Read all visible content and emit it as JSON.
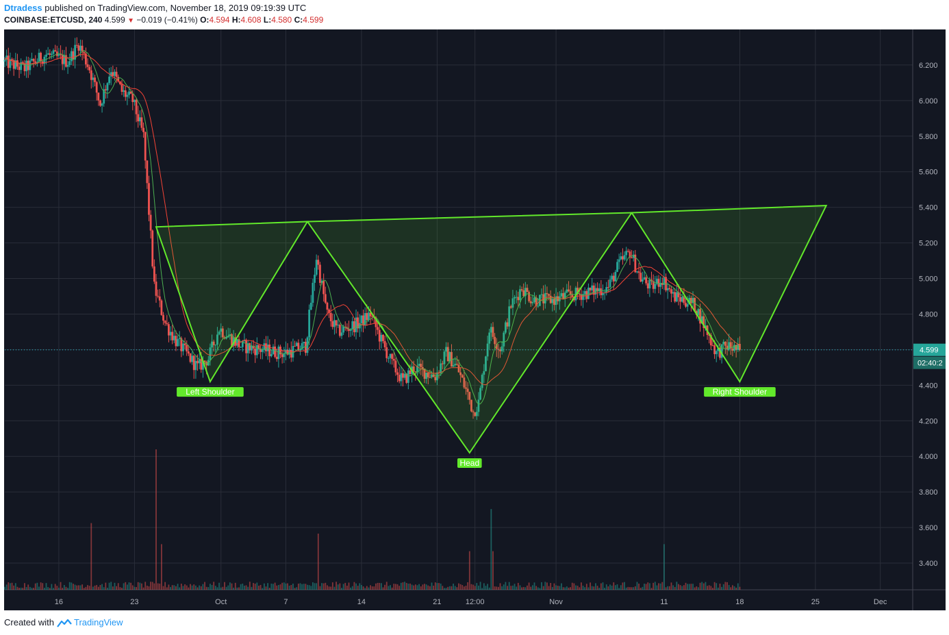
{
  "header": {
    "author": "Dtradess",
    "published_text": "published on TradingView.com, November 18, 2019 09:19:39 UTC",
    "symbol": "COINBASE:ETCUSD, 240",
    "last": "4.599",
    "change": "−0.019 (−0.41%)",
    "o_label": "O:",
    "o_value": "4.594",
    "h_label": "H:",
    "h_value": "4.608",
    "l_label": "L:",
    "l_value": "4.580",
    "c_label": "C:",
    "c_value": "4.599"
  },
  "footer": {
    "created_with": "Created with",
    "brand": "TradingView",
    "logo_icon": "tradingview-logo-icon"
  },
  "colors": {
    "background": "#131722",
    "grid": "#2a2e39",
    "up": "#26a69a",
    "down": "#ef5350",
    "pattern": "#62e92b",
    "ma_fast": "#4caf50",
    "ma_slow": "#f44336",
    "price_line": "#26c6da",
    "axis_text": "#b2b5be"
  },
  "chart_data": {
    "type": "candlestick",
    "symbol": "COINBASE:ETCUSD",
    "interval": "240",
    "ylim": [
      3.25,
      6.4
    ],
    "y_ticks": [
      3.4,
      3.6,
      3.8,
      4.0,
      4.2,
      4.4,
      4.6,
      4.8,
      5.0,
      5.2,
      5.4,
      5.6,
      5.8,
      6.0,
      6.2
    ],
    "y_tick_labels": [
      "3.400",
      "3.600",
      "3.800",
      "4.000",
      "4.200",
      "4.400",
      "4.600",
      "4.800",
      "5.000",
      "5.200",
      "5.400",
      "5.600",
      "5.800",
      "6.000",
      "6.200"
    ],
    "x_range": [
      "2019-09-11",
      "2019-12-04"
    ],
    "x_ticks": [
      {
        "date": "2019-09-16",
        "label": "16"
      },
      {
        "date": "2019-09-23",
        "label": "23"
      },
      {
        "date": "2019-10-01",
        "label": "Oct"
      },
      {
        "date": "2019-10-07",
        "label": "7"
      },
      {
        "date": "2019-10-14",
        "label": "14"
      },
      {
        "date": "2019-10-21",
        "label": "21"
      },
      {
        "date": "2019-10-24T12:00",
        "label": "12:00"
      },
      {
        "date": "2019-11-01",
        "label": "Nov"
      },
      {
        "date": "2019-11-11",
        "label": "11"
      },
      {
        "date": "2019-11-18",
        "label": "18"
      },
      {
        "date": "2019-11-25",
        "label": "25"
      },
      {
        "date": "2019-12-01",
        "label": "Dec"
      }
    ],
    "grid": true,
    "price_path": [
      [
        "2019-09-11",
        6.22
      ],
      [
        "2019-09-13",
        6.18
      ],
      [
        "2019-09-15",
        6.26
      ],
      [
        "2019-09-17",
        6.22
      ],
      [
        "2019-09-18",
        6.32
      ],
      [
        "2019-09-19",
        6.18
      ],
      [
        "2019-09-20",
        5.98
      ],
      [
        "2019-09-21",
        6.18
      ],
      [
        "2019-09-22",
        6.05
      ],
      [
        "2019-09-23",
        6.0
      ],
      [
        "2019-09-24",
        5.8
      ],
      [
        "2019-09-25",
        4.95
      ],
      [
        "2019-09-26",
        4.75
      ],
      [
        "2019-09-27",
        4.65
      ],
      [
        "2019-09-29",
        4.5
      ],
      [
        "2019-09-30",
        4.55
      ],
      [
        "2019-10-01",
        4.72
      ],
      [
        "2019-10-03",
        4.62
      ],
      [
        "2019-10-05",
        4.6
      ],
      [
        "2019-10-07",
        4.58
      ],
      [
        "2019-10-09",
        4.62
      ],
      [
        "2019-10-10",
        5.12
      ],
      [
        "2019-10-11",
        4.8
      ],
      [
        "2019-10-12",
        4.7
      ],
      [
        "2019-10-14",
        4.75
      ],
      [
        "2019-10-15",
        4.8
      ],
      [
        "2019-10-16",
        4.65
      ],
      [
        "2019-10-17",
        4.52
      ],
      [
        "2019-10-18",
        4.42
      ],
      [
        "2019-10-19",
        4.5
      ],
      [
        "2019-10-21",
        4.45
      ],
      [
        "2019-10-22",
        4.58
      ],
      [
        "2019-10-23",
        4.5
      ],
      [
        "2019-10-24",
        4.35
      ],
      [
        "2019-10-24T12:00",
        4.25
      ],
      [
        "2019-10-25",
        4.3
      ],
      [
        "2019-10-26",
        4.72
      ],
      [
        "2019-10-27",
        4.6
      ],
      [
        "2019-10-28",
        4.85
      ],
      [
        "2019-10-29",
        4.95
      ],
      [
        "2019-10-30",
        4.88
      ],
      [
        "2019-11-01",
        4.88
      ],
      [
        "2019-11-02",
        4.9
      ],
      [
        "2019-11-04",
        4.92
      ],
      [
        "2019-11-06",
        4.95
      ],
      [
        "2019-11-07",
        5.08
      ],
      [
        "2019-11-08",
        5.15
      ],
      [
        "2019-11-09",
        5.0
      ],
      [
        "2019-11-10",
        4.95
      ],
      [
        "2019-11-11",
        5.0
      ],
      [
        "2019-11-12",
        4.9
      ],
      [
        "2019-11-13",
        4.88
      ],
      [
        "2019-11-14",
        4.85
      ],
      [
        "2019-11-15",
        4.72
      ],
      [
        "2019-11-16",
        4.58
      ],
      [
        "2019-11-17",
        4.62
      ],
      [
        "2019-11-18",
        4.599
      ]
    ],
    "volume_scale_max": 4.0,
    "volume_spikes": [
      {
        "date": "2019-09-19",
        "value": 1.9
      },
      {
        "date": "2019-09-25",
        "value": 4.0
      },
      {
        "date": "2019-09-25T12:00",
        "value": 1.3
      },
      {
        "date": "2019-10-10",
        "value": 1.6
      },
      {
        "date": "2019-10-24",
        "value": 1.1
      },
      {
        "date": "2019-10-26",
        "value": 2.3
      },
      {
        "date": "2019-10-26T04:00",
        "value": 1.1
      },
      {
        "date": "2019-11-11",
        "value": 1.3
      }
    ],
    "last_price": {
      "value": 4.599,
      "label": "4.599",
      "countdown": "02:40:2"
    },
    "pattern": {
      "name": "inverse head and shoulders",
      "triangles": [
        {
          "points": [
            [
              "2019-09-25",
              5.29
            ],
            [
              "2019-10-09",
              5.32
            ],
            [
              "2019-09-30",
              4.42
            ]
          ]
        },
        {
          "points": [
            [
              "2019-10-09",
              5.32
            ],
            [
              "2019-11-08",
              5.37
            ],
            [
              "2019-10-24",
              4.02
            ]
          ]
        },
        {
          "points": [
            [
              "2019-11-08",
              5.37
            ],
            [
              "2019-11-26",
              5.41
            ],
            [
              "2019-11-18",
              4.42
            ]
          ]
        }
      ],
      "labels": [
        {
          "text": "Left Shoulder",
          "date": "2019-09-30",
          "price": 4.42
        },
        {
          "text": "Head",
          "date": "2019-10-24",
          "price": 4.02
        },
        {
          "text": "Right Shoulder",
          "date": "2019-11-18",
          "price": 4.42
        }
      ]
    }
  }
}
